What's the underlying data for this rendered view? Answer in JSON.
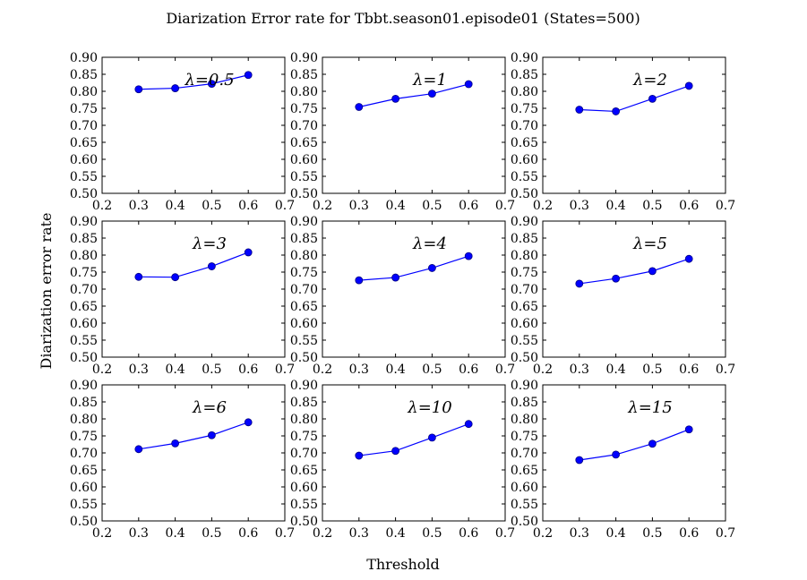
{
  "figure": {
    "title": "Diarization Error rate for Tbbt.season01.episode01 (States=500)",
    "xlabel": "Threshold",
    "ylabel": "Diarization error rate"
  },
  "colors": {
    "series": "#0000ff",
    "marker_edge": "#000080",
    "axes": "#000000",
    "background": "#ffffff"
  },
  "chart_data": [
    {
      "type": "line",
      "annotation": "λ=0.5",
      "x": [
        0.3,
        0.4,
        0.5,
        0.6
      ],
      "y": [
        0.806,
        0.809,
        0.822,
        0.848
      ],
      "xlim": [
        0.2,
        0.7
      ],
      "ylim": [
        0.5,
        0.9
      ],
      "xticks": [
        "0.2",
        "0.3",
        "0.4",
        "0.5",
        "0.6",
        "0.7"
      ],
      "yticks": [
        "0.50",
        "0.55",
        "0.60",
        "0.65",
        "0.70",
        "0.75",
        "0.80",
        "0.85",
        "0.90"
      ],
      "grid": false
    },
    {
      "type": "line",
      "annotation": "λ=1",
      "x": [
        0.3,
        0.4,
        0.5,
        0.6
      ],
      "y": [
        0.754,
        0.778,
        0.793,
        0.821
      ],
      "xlim": [
        0.2,
        0.7
      ],
      "ylim": [
        0.5,
        0.9
      ],
      "xticks": [
        "0.2",
        "0.3",
        "0.4",
        "0.5",
        "0.6",
        "0.7"
      ],
      "yticks": [
        "0.50",
        "0.55",
        "0.60",
        "0.65",
        "0.70",
        "0.75",
        "0.80",
        "0.85",
        "0.90"
      ],
      "grid": false
    },
    {
      "type": "line",
      "annotation": "λ=2",
      "x": [
        0.3,
        0.4,
        0.5,
        0.6
      ],
      "y": [
        0.746,
        0.741,
        0.778,
        0.816
      ],
      "xlim": [
        0.2,
        0.7
      ],
      "ylim": [
        0.5,
        0.9
      ],
      "xticks": [
        "0.2",
        "0.3",
        "0.4",
        "0.5",
        "0.6",
        "0.7"
      ],
      "yticks": [
        "0.50",
        "0.55",
        "0.60",
        "0.65",
        "0.70",
        "0.75",
        "0.80",
        "0.85",
        "0.90"
      ],
      "grid": false
    },
    {
      "type": "line",
      "annotation": "λ=3",
      "x": [
        0.3,
        0.4,
        0.5,
        0.6
      ],
      "y": [
        0.736,
        0.735,
        0.767,
        0.808
      ],
      "xlim": [
        0.2,
        0.7
      ],
      "ylim": [
        0.5,
        0.9
      ],
      "xticks": [
        "0.2",
        "0.3",
        "0.4",
        "0.5",
        "0.6",
        "0.7"
      ],
      "yticks": [
        "0.50",
        "0.55",
        "0.60",
        "0.65",
        "0.70",
        "0.75",
        "0.80",
        "0.85",
        "0.90"
      ],
      "grid": false
    },
    {
      "type": "line",
      "annotation": "λ=4",
      "x": [
        0.3,
        0.4,
        0.5,
        0.6
      ],
      "y": [
        0.726,
        0.734,
        0.762,
        0.797
      ],
      "xlim": [
        0.2,
        0.7
      ],
      "ylim": [
        0.5,
        0.9
      ],
      "xticks": [
        "0.2",
        "0.3",
        "0.4",
        "0.5",
        "0.6",
        "0.7"
      ],
      "yticks": [
        "0.50",
        "0.55",
        "0.60",
        "0.65",
        "0.70",
        "0.75",
        "0.80",
        "0.85",
        "0.90"
      ],
      "grid": false
    },
    {
      "type": "line",
      "annotation": "λ=5",
      "x": [
        0.3,
        0.4,
        0.5,
        0.6
      ],
      "y": [
        0.716,
        0.731,
        0.753,
        0.789
      ],
      "xlim": [
        0.2,
        0.7
      ],
      "ylim": [
        0.5,
        0.9
      ],
      "xticks": [
        "0.2",
        "0.3",
        "0.4",
        "0.5",
        "0.6",
        "0.7"
      ],
      "yticks": [
        "0.50",
        "0.55",
        "0.60",
        "0.65",
        "0.70",
        "0.75",
        "0.80",
        "0.85",
        "0.90"
      ],
      "grid": false
    },
    {
      "type": "line",
      "annotation": "λ=6",
      "x": [
        0.3,
        0.4,
        0.5,
        0.6
      ],
      "y": [
        0.711,
        0.728,
        0.752,
        0.79
      ],
      "xlim": [
        0.2,
        0.7
      ],
      "ylim": [
        0.5,
        0.9
      ],
      "xticks": [
        "0.2",
        "0.3",
        "0.4",
        "0.5",
        "0.6",
        "0.7"
      ],
      "yticks": [
        "0.50",
        "0.55",
        "0.60",
        "0.65",
        "0.70",
        "0.75",
        "0.80",
        "0.85",
        "0.90"
      ],
      "grid": false
    },
    {
      "type": "line",
      "annotation": "λ=10",
      "x": [
        0.3,
        0.4,
        0.5,
        0.6
      ],
      "y": [
        0.692,
        0.706,
        0.745,
        0.785
      ],
      "xlim": [
        0.2,
        0.7
      ],
      "ylim": [
        0.5,
        0.9
      ],
      "xticks": [
        "0.2",
        "0.3",
        "0.4",
        "0.5",
        "0.6",
        "0.7"
      ],
      "yticks": [
        "0.50",
        "0.55",
        "0.60",
        "0.65",
        "0.70",
        "0.75",
        "0.80",
        "0.85",
        "0.90"
      ],
      "grid": false
    },
    {
      "type": "line",
      "annotation": "λ=15",
      "x": [
        0.3,
        0.4,
        0.5,
        0.6
      ],
      "y": [
        0.679,
        0.695,
        0.727,
        0.769
      ],
      "xlim": [
        0.2,
        0.7
      ],
      "ylim": [
        0.5,
        0.9
      ],
      "xticks": [
        "0.2",
        "0.3",
        "0.4",
        "0.5",
        "0.6",
        "0.7"
      ],
      "yticks": [
        "0.50",
        "0.55",
        "0.60",
        "0.65",
        "0.70",
        "0.75",
        "0.80",
        "0.85",
        "0.90"
      ],
      "grid": false
    }
  ]
}
